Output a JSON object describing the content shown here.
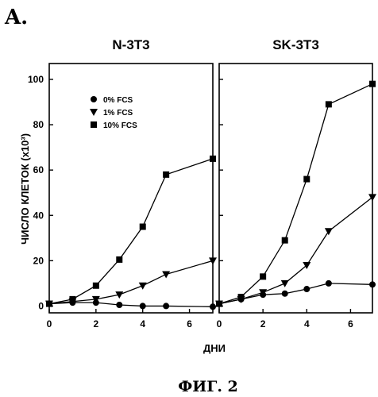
{
  "figure": {
    "panel_letter": "A.",
    "caption": "ФИГ. 2"
  },
  "chart_data": [
    {
      "type": "line",
      "title": "N-3T3",
      "xlabel": "ДНИ",
      "ylabel": "ЧИСЛО КЛЕТОК (x10³)",
      "xlim": [
        0,
        7
      ],
      "ylim": [
        -3,
        107
      ],
      "xticks": [
        0,
        2,
        4,
        6
      ],
      "yticks": [
        0,
        20,
        40,
        60,
        80,
        100
      ],
      "legend_position": "top-left",
      "series": [
        {
          "name": "0% FCS",
          "marker": "circle",
          "x": [
            0,
            1,
            2,
            3,
            4,
            5,
            7
          ],
          "y": [
            1,
            1.5,
            1.5,
            0.5,
            0,
            0,
            -0.3
          ]
        },
        {
          "name": "1% FCS",
          "marker": "triangle-down",
          "x": [
            0,
            1,
            2,
            3,
            4,
            5,
            7
          ],
          "y": [
            1,
            2,
            3,
            5,
            9,
            14,
            20
          ]
        },
        {
          "name": "10% FCS",
          "marker": "square",
          "x": [
            0,
            1,
            2,
            3,
            4,
            5,
            7
          ],
          "y": [
            1,
            3,
            9,
            20.5,
            35,
            58,
            65
          ]
        }
      ]
    },
    {
      "type": "line",
      "title": "SK-3T3",
      "xlabel": "ДНИ",
      "ylabel": "",
      "xlim": [
        0,
        7
      ],
      "ylim": [
        -3,
        107
      ],
      "xticks": [
        0,
        2,
        4,
        6
      ],
      "yticks": [
        0,
        20,
        40,
        60,
        80,
        100
      ],
      "series": [
        {
          "name": "0% FCS",
          "marker": "circle",
          "x": [
            0,
            1,
            2,
            3,
            4,
            5,
            7
          ],
          "y": [
            1,
            3,
            5,
            5.5,
            7.5,
            10,
            9.5
          ]
        },
        {
          "name": "1% FCS",
          "marker": "triangle-down",
          "x": [
            0,
            1,
            2,
            3,
            4,
            5,
            7
          ],
          "y": [
            1,
            3,
            6,
            10,
            18,
            33,
            48
          ]
        },
        {
          "name": "10% FCS",
          "marker": "square",
          "x": [
            0,
            1,
            2,
            3,
            4,
            5,
            7
          ],
          "y": [
            1,
            4,
            13,
            29,
            56,
            89,
            98
          ]
        }
      ]
    }
  ]
}
